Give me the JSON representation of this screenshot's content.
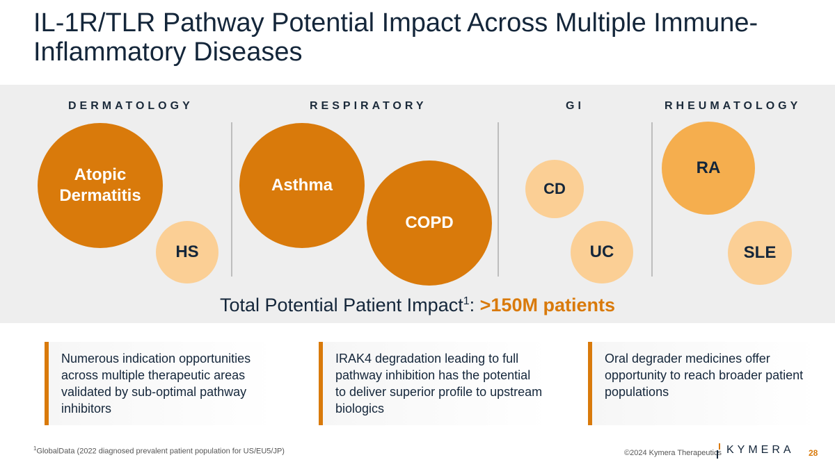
{
  "slide": {
    "title": "IL-1R/TLR Pathway Potential Impact Across Multiple Immune-Inflammatory Diseases"
  },
  "categories": [
    {
      "label": "DERMATOLOGY"
    },
    {
      "label": "RESPIRATORY"
    },
    {
      "label": "GI"
    },
    {
      "label": "RHEUMATOLOGY"
    }
  ],
  "bubbles": {
    "atopic_dermatitis": "Atopic Dermatitis",
    "hs": "HS",
    "asthma": "Asthma",
    "copd": "COPD",
    "cd": "CD",
    "uc": "UC",
    "ra": "RA",
    "sle": "SLE"
  },
  "total": {
    "prefix": "Total Potential Patient Impact",
    "footnote_mark": "1",
    "colon": ": ",
    "highlight": ">150M patients"
  },
  "cards": [
    {
      "text": "Numerous indication opportunities across multiple therapeutic areas validated by sub-optimal pathway inhibitors"
    },
    {
      "text": "IRAK4 degradation leading to full pathway inhibition has the potential to deliver superior profile to upstream biologics"
    },
    {
      "text": "Oral degrader medicines offer opportunity to reach broader patient populations"
    }
  ],
  "footer": {
    "footnote_mark": "1",
    "footnote": "GlobalData (2022 diagnosed prevalent patient population for US/EU5/JP)",
    "copyright": "©2024 Kymera Therapeutics",
    "logo_text": "KYMERA",
    "page_number": "28"
  },
  "colors": {
    "accent": "#d97a0b",
    "bubble_mid": "#f5ae4e",
    "bubble_light": "#fbcf95",
    "band": "#eeeeee",
    "text": "#14263a"
  }
}
